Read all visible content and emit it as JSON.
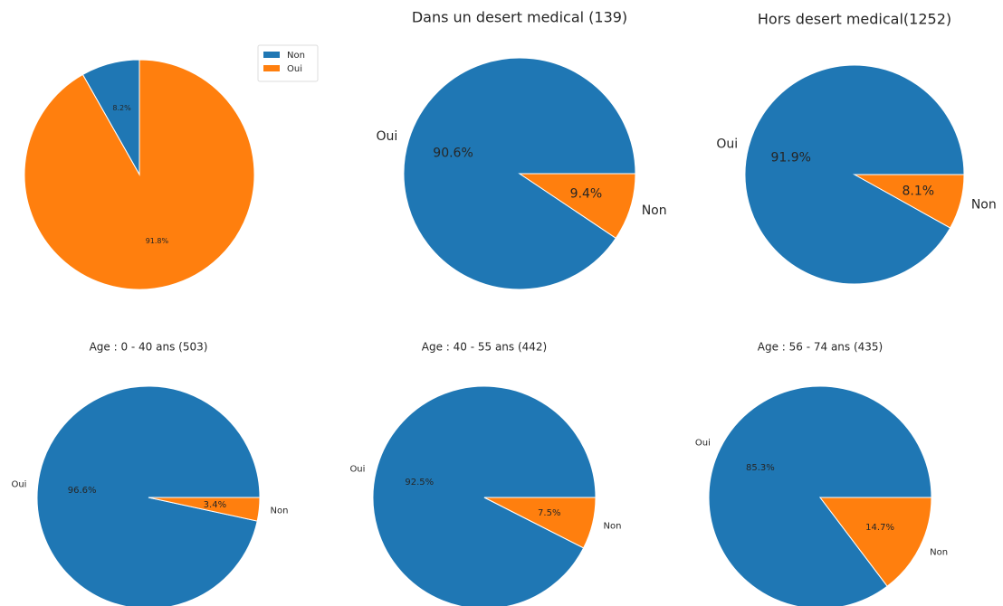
{
  "chart_data": [
    {
      "type": "pie",
      "categories": [
        "Non",
        "Oui"
      ],
      "values": [
        8.2,
        91.8
      ],
      "value_labels": [
        "8.2%",
        "91.8%"
      ],
      "colors": [
        "#1f77b4",
        "#ff7f0e"
      ],
      "startangle": 90,
      "legend": "upper right",
      "show_labels": false
    },
    {
      "type": "pie",
      "title": "Dans un desert medical (139)",
      "categories": [
        "Oui",
        "Non"
      ],
      "values": [
        90.6,
        9.4
      ],
      "value_labels": [
        "90.6%",
        "9.4%"
      ],
      "colors": [
        "#1f77b4",
        "#ff7f0e"
      ],
      "startangle": 0,
      "show_labels": true
    },
    {
      "type": "pie",
      "title": "Hors desert medical(1252)",
      "categories": [
        "Oui",
        "Non"
      ],
      "values": [
        91.9,
        8.1
      ],
      "value_labels": [
        "91.9%",
        "8.1%"
      ],
      "colors": [
        "#1f77b4",
        "#ff7f0e"
      ],
      "startangle": 0,
      "show_labels": true
    },
    {
      "type": "pie",
      "title": "Age : 0 - 40 ans (503)",
      "categories": [
        "Oui",
        "Non"
      ],
      "values": [
        96.6,
        3.4
      ],
      "value_labels": [
        "96.6%",
        "3.4%"
      ],
      "colors": [
        "#1f77b4",
        "#ff7f0e"
      ],
      "startangle": 0,
      "show_labels": true
    },
    {
      "type": "pie",
      "title": "Age : 40 - 55 ans (442)",
      "categories": [
        "Oui",
        "Non"
      ],
      "values": [
        92.5,
        7.5
      ],
      "value_labels": [
        "92.5%",
        "7.5%"
      ],
      "colors": [
        "#1f77b4",
        "#ff7f0e"
      ],
      "startangle": 0,
      "show_labels": true
    },
    {
      "type": "pie",
      "title": "Age : 56 - 74 ans (435)",
      "categories": [
        "Oui",
        "Non"
      ],
      "values": [
        85.3,
        14.7
      ],
      "value_labels": [
        "85.3%",
        "14.7%"
      ],
      "colors": [
        "#1f77b4",
        "#ff7f0e"
      ],
      "startangle": 0,
      "show_labels": true
    }
  ]
}
